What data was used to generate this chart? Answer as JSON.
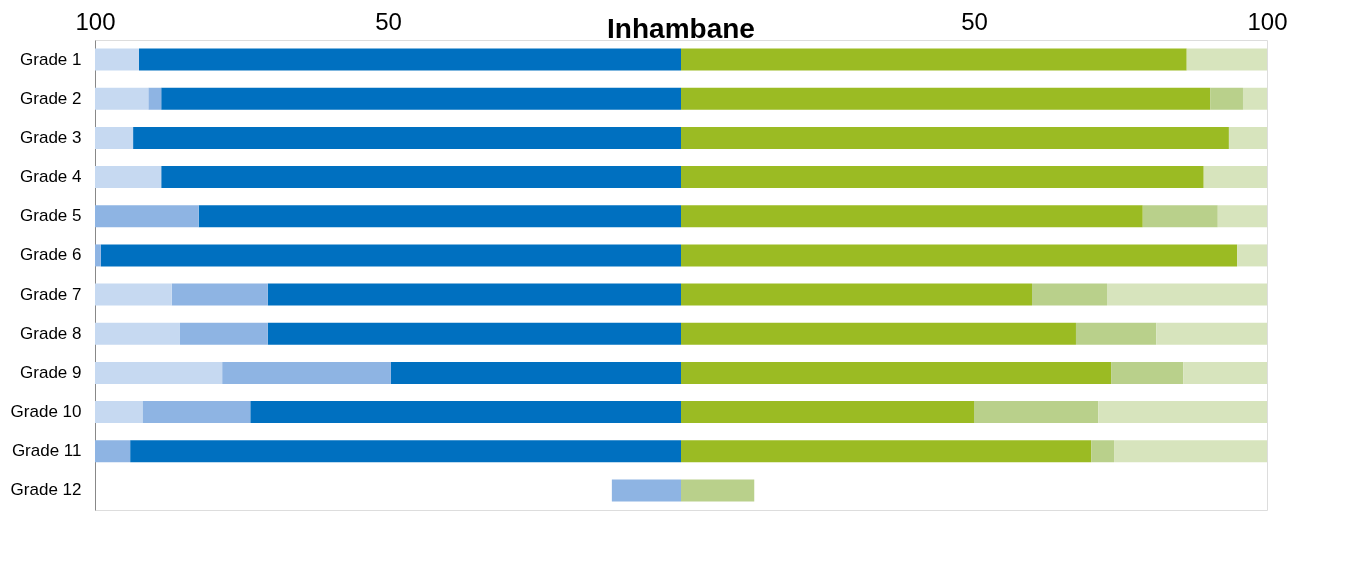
{
  "chart_data": {
    "type": "bar",
    "orientation": "horizontal",
    "stacked": true,
    "title": "Inhambane",
    "categories": [
      "Grade 1",
      "Grade 2",
      "Grade 3",
      "Grade 4",
      "Grade 5",
      "Grade 6",
      "Grade 7",
      "Grade 8",
      "Grade 9",
      "Grade 10",
      "Grade 11",
      "Grade 12"
    ],
    "series": [
      {
        "color": "#0070c0",
        "values": [
          -92.5,
          -88.7,
          -93.5,
          -88.7,
          -82.3,
          -99.0,
          -70.5,
          -70.5,
          -49.5,
          -73.5,
          -94.0,
          null
        ]
      },
      {
        "color": "#8eb4e3",
        "values": [
          null,
          -2.2,
          null,
          null,
          -17.7,
          -1.0,
          -16.4,
          -15.0,
          -28.8,
          -18.4,
          -6.0,
          -11.8
        ]
      },
      {
        "color": "#c6d9f1",
        "values": [
          -7.5,
          -9.1,
          -6.5,
          -11.3,
          null,
          null,
          -13.1,
          -14.5,
          -21.7,
          -8.1,
          null,
          null
        ]
      },
      {
        "color": "#9bbb23",
        "values": [
          86.3,
          90.3,
          93.5,
          89.2,
          78.8,
          94.9,
          59.9,
          67.4,
          73.4,
          50.0,
          70.0,
          null
        ]
      },
      {
        "color": "#b9d08b",
        "values": [
          null,
          5.6,
          null,
          null,
          12.8,
          null,
          12.8,
          13.7,
          12.3,
          21.2,
          3.9,
          12.5
        ]
      },
      {
        "color": "#d7e4bd",
        "values": [
          13.7,
          4.1,
          6.5,
          10.8,
          8.4,
          5.1,
          27.3,
          18.9,
          14.3,
          28.8,
          26.1,
          null
        ]
      }
    ],
    "xlim": [
      -100,
      100
    ],
    "xticks": [
      {
        "value": -100,
        "label": "100"
      },
      {
        "value": -50,
        "label": "50"
      },
      {
        "value": 50,
        "label": "50"
      },
      {
        "value": 100,
        "label": "100"
      }
    ],
    "grid": false,
    "legend": false
  }
}
